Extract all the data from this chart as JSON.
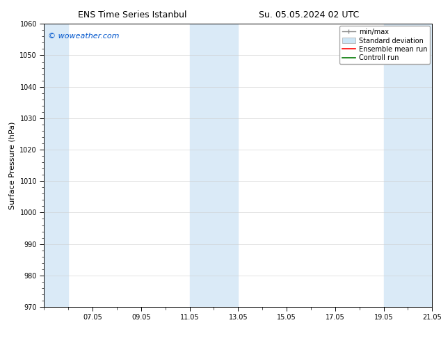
{
  "title_left": "ENS Time Series Istanbul",
  "title_right": "Su. 05.05.2024 02 UTC",
  "ylabel": "Surface Pressure (hPa)",
  "watermark": "© woweather.com",
  "watermark_color": "#0055cc",
  "ylim": [
    970,
    1060
  ],
  "yticks": [
    970,
    980,
    990,
    1000,
    1010,
    1020,
    1030,
    1040,
    1050,
    1060
  ],
  "xlim": [
    5.0,
    21.0
  ],
  "xtick_positions": [
    7,
    9,
    11,
    13,
    15,
    17,
    19,
    21
  ],
  "xtick_labels": [
    "07.05",
    "09.05",
    "11.05",
    "13.05",
    "15.05",
    "17.05",
    "19.05",
    "21.05"
  ],
  "shade_bands": [
    {
      "x_start": 5.0,
      "x_end": 6.0
    },
    {
      "x_start": 11.0,
      "x_end": 13.0
    },
    {
      "x_start": 19.0,
      "x_end": 21.0
    }
  ],
  "shade_color": "#daeaf7",
  "background_color": "#ffffff",
  "title_fontsize": 9,
  "axis_label_fontsize": 8,
  "tick_fontsize": 7,
  "legend_fontsize": 7,
  "watermark_fontsize": 8
}
